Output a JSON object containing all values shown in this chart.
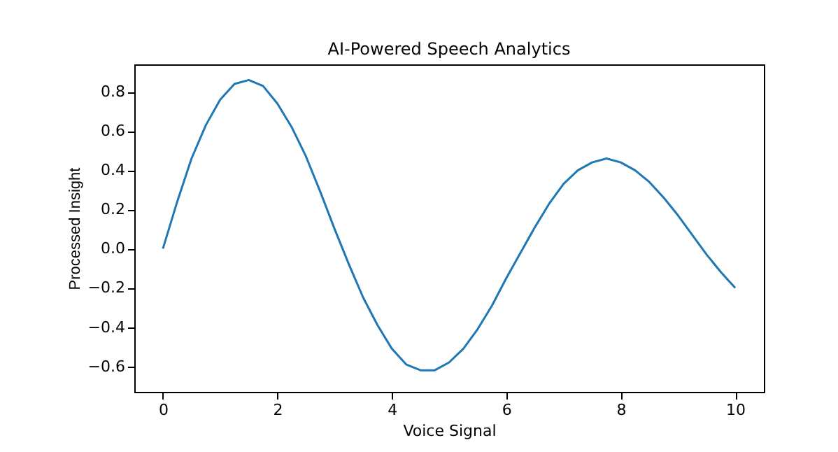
{
  "chart_data": {
    "type": "line",
    "title": "AI-Powered Speech Analytics",
    "xlabel": "Voice Signal",
    "ylabel": "Processed Insight",
    "x": [
      0,
      0.25,
      0.5,
      0.75,
      1,
      1.25,
      1.5,
      1.75,
      2,
      2.25,
      2.5,
      2.75,
      3,
      3.25,
      3.5,
      3.75,
      4,
      4.25,
      4.5,
      4.75,
      5,
      5.25,
      5.5,
      5.75,
      6,
      6.25,
      6.5,
      6.75,
      7,
      7.25,
      7.5,
      7.75,
      8,
      8.25,
      8.5,
      8.75,
      9,
      9.25,
      9.5,
      9.75,
      10
    ],
    "series": [
      {
        "color": "#1f77b4",
        "values": [
          0,
          0.24,
          0.46,
          0.63,
          0.76,
          0.84,
          0.86,
          0.83,
          0.74,
          0.62,
          0.47,
          0.29,
          0.1,
          -0.08,
          -0.25,
          -0.39,
          -0.51,
          -0.59,
          -0.62,
          -0.62,
          -0.58,
          -0.51,
          -0.41,
          -0.29,
          -0.15,
          -0.02,
          0.11,
          0.23,
          0.33,
          0.4,
          0.44,
          0.46,
          0.44,
          0.4,
          0.34,
          0.26,
          0.17,
          0.07,
          -0.03,
          -0.12,
          -0.2
        ]
      }
    ],
    "xlim": [
      -0.5,
      10.5
    ],
    "ylim": [
      -0.73,
      0.94
    ],
    "xticks": [
      0,
      2,
      4,
      6,
      8,
      10
    ],
    "yticks": [
      {
        "value": -0.6,
        "label": "−0.6"
      },
      {
        "value": -0.4,
        "label": "−0.4"
      },
      {
        "value": -0.2,
        "label": "−0.2"
      },
      {
        "value": 0,
        "label": "0.0"
      },
      0.2,
      0.4,
      0.6,
      0.8
    ],
    "grid": false,
    "marker": "none",
    "line_style": "solid"
  }
}
